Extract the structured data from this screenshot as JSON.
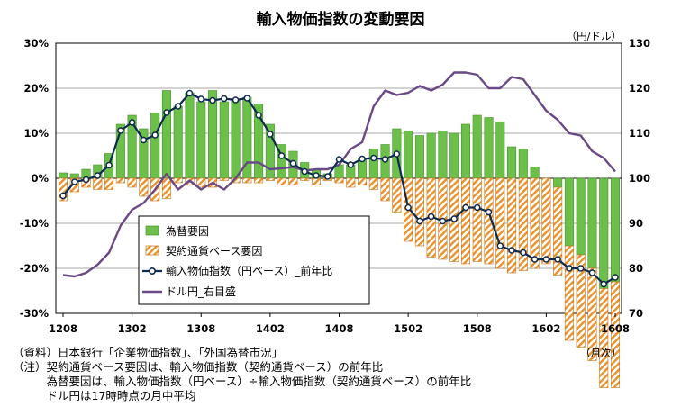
{
  "chart_data": {
    "type": "bar+line",
    "title": "輸入物価指数の変動要因",
    "left_axis": {
      "range": [
        -30,
        30
      ],
      "ticks": [
        30,
        20,
        10,
        0,
        -10,
        -20,
        -30
      ],
      "tick_labels": [
        "30%",
        "20%",
        "10%",
        "0%",
        "-10%",
        "-20%",
        "-30%"
      ]
    },
    "right_axis": {
      "unit_label": "（円/ドル）",
      "range": [
        70,
        130
      ],
      "ticks": [
        130,
        120,
        110,
        100,
        90,
        80,
        70
      ],
      "tick_labels": [
        "130",
        "120",
        "110",
        "100",
        "90",
        "80",
        "70"
      ]
    },
    "x_axis": {
      "months": [
        "1208",
        "1209",
        "1210",
        "1211",
        "1212",
        "1301",
        "1302",
        "1303",
        "1304",
        "1305",
        "1306",
        "1307",
        "1308",
        "1309",
        "1310",
        "1311",
        "1312",
        "1401",
        "1402",
        "1403",
        "1404",
        "1405",
        "1406",
        "1407",
        "1408",
        "1409",
        "1410",
        "1411",
        "1412",
        "1501",
        "1502",
        "1503",
        "1504",
        "1505",
        "1506",
        "1507",
        "1508",
        "1509",
        "1510",
        "1511",
        "1512",
        "1601",
        "1602",
        "1603",
        "1604",
        "1605",
        "1606",
        "1607",
        "1608"
      ],
      "tick_labels": [
        "1208",
        "1302",
        "1308",
        "1402",
        "1408",
        "1502",
        "1508",
        "1602",
        "1608"
      ],
      "unit_label": "（月次）"
    },
    "grid": "horizontal",
    "legend": {
      "placement": "bottom-left",
      "entries": [
        "為替要因",
        "契約通貨ベース要因",
        "輸入物価指数（円ベース）_前年比",
        "ドル円_右目盛"
      ]
    },
    "series": [
      {
        "name": "為替要因",
        "kind": "bar",
        "axis": "left",
        "color": "#6cc04a",
        "values": [
          1.2,
          1.0,
          2.0,
          3.0,
          5.5,
          12.0,
          14.0,
          11.0,
          14.5,
          19.5,
          16.0,
          19.0,
          17.0,
          19.5,
          17.0,
          17.5,
          18.0,
          16.5,
          12.0,
          7.5,
          6.0,
          3.5,
          2.0,
          1.0,
          3.0,
          3.0,
          4.5,
          6.5,
          7.5,
          11.0,
          10.5,
          9.5,
          10.0,
          10.5,
          10.0,
          12.0,
          14.0,
          13.5,
          12.5,
          7.0,
          6.5,
          2.5,
          0.0,
          -2.0,
          -15.0,
          -17.0,
          -20.0,
          -24.5,
          -23.0
        ]
      },
      {
        "name": "契約通貨ベース要因",
        "kind": "bar",
        "axis": "left",
        "color": "#e8922b",
        "values": [
          -5.0,
          -3.0,
          -2.0,
          -2.5,
          -2.5,
          -1.0,
          -2.0,
          -4.0,
          -5.0,
          -4.5,
          -1.0,
          -1.5,
          -2.0,
          -2.0,
          -0.5,
          -1.0,
          -1.0,
          -1.0,
          -0.5,
          -1.5,
          -1.5,
          -0.5,
          -1.5,
          -0.5,
          -1.0,
          -2.0,
          -1.5,
          -2.5,
          -5.0,
          -7.5,
          -14.0,
          -15.0,
          -17.5,
          -18.0,
          -18.5,
          -19.0,
          -18.5,
          -19.0,
          -20.0,
          -21.0,
          -20.5,
          -20.0,
          -19.0,
          -19.5,
          -21.0,
          -20.5,
          -20.5,
          -22.0,
          -23.5
        ]
      },
      {
        "name": "輸入物価指数（円ベース）_前年比",
        "kind": "line-marker",
        "axis": "left",
        "color": "#0f2a4f",
        "values": [
          -3.9,
          -0.8,
          -0.3,
          0.6,
          2.9,
          10.6,
          12.4,
          8.5,
          9.6,
          14.6,
          16.0,
          18.9,
          17.6,
          17.3,
          17.7,
          17.4,
          17.8,
          14.0,
          9.8,
          5.0,
          3.3,
          1.5,
          0.6,
          0.4,
          4.2,
          3.0,
          4.3,
          4.5,
          4.2,
          5.4,
          -6.5,
          -9.5,
          -8.5,
          -9.5,
          -9.0,
          -6.5,
          -6.5,
          -7.5,
          -15.0,
          -16.0,
          -16.5,
          -18.0,
          -18.0,
          -18.0,
          -20.0,
          -20.0,
          -21.0,
          -23.5,
          -22.0
        ]
      },
      {
        "name": "ドル円_右目盛",
        "kind": "line",
        "axis": "right",
        "color": "#6a4a86",
        "values": [
          78.5,
          78.2,
          79.0,
          80.8,
          83.5,
          89.5,
          93.0,
          94.5,
          97.5,
          101.0,
          97.5,
          99.5,
          97.5,
          99.0,
          97.5,
          100.0,
          103.5,
          103.5,
          102.0,
          102.2,
          102.5,
          101.7,
          102.0,
          102.0,
          103.0,
          106.5,
          108.0,
          116.0,
          119.5,
          118.5,
          119.0,
          120.5,
          119.5,
          120.8,
          123.5,
          123.5,
          123.0,
          120.0,
          120.0,
          122.5,
          122.0,
          118.5,
          115.0,
          113.0,
          110.0,
          109.5,
          106.0,
          104.5,
          101.5
        ]
      }
    ]
  },
  "notes": [
    "（資料）日本銀行「企業物価指数」、「外国為替市況」",
    "（注）契約通貨ベース要因は、輸入物価指数（契約通貨ベース）の前年比",
    "　　　為替要因は、輸入物価指数（円ベース）÷輸入物価指数（契約通貨ベース）の前年比",
    "　　　ドル円は17時時点の月中平均"
  ]
}
